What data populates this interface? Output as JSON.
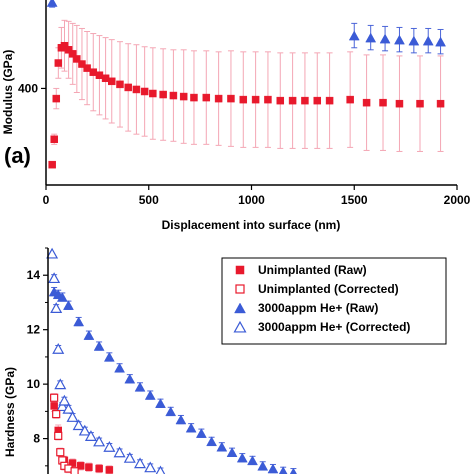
{
  "colors": {
    "unimplanted": "#e8192c",
    "unimplanted_err": "#f4a6b4",
    "implanted": "#3b5bd6",
    "implanted_err": "#4a64d8",
    "axis": "#000000"
  },
  "chart_data": [
    {
      "type": "scatter",
      "panel_label": "(a)",
      "ylabel": "Modulus (GPa)",
      "xlabel": "Displacement into surface (nm)",
      "xlim": [
        0,
        2000
      ],
      "ylim": [
        305,
        487
      ],
      "xticks": [
        "0",
        "500",
        "1000",
        "1500",
        "2000"
      ],
      "xtick_values": [
        0,
        500,
        1000,
        1500,
        2000
      ],
      "yticks": [
        "400"
      ],
      "ytick_values": [
        400
      ],
      "series": [
        {
          "key": "unimplanted_raw",
          "marker": "square",
          "x": [
            30,
            40,
            50,
            60,
            75,
            90,
            110,
            130,
            150,
            175,
            200,
            230,
            260,
            290,
            320,
            360,
            400,
            440,
            480,
            520,
            570,
            620,
            670,
            720,
            780,
            840,
            900,
            960,
            1020,
            1080,
            1140,
            1200,
            1260,
            1320,
            1380,
            1480,
            1560,
            1640,
            1720,
            1820,
            1920
          ],
          "y": [
            325,
            350,
            390,
            425,
            440,
            442,
            438,
            434,
            429,
            424,
            420,
            416,
            413,
            410,
            407,
            404,
            401,
            399,
            397,
            395,
            394,
            393,
            392,
            391,
            391,
            390,
            390,
            389,
            389,
            389,
            388,
            388,
            388,
            388,
            388,
            389,
            386,
            386,
            385,
            385,
            385
          ],
          "err": [
            0,
            5,
            10,
            15,
            20,
            25,
            28,
            30,
            33,
            35,
            36,
            38,
            39,
            40,
            41,
            42,
            43,
            44,
            44,
            45,
            45,
            45,
            46,
            46,
            46,
            46,
            47,
            47,
            47,
            47,
            47,
            47,
            47,
            47,
            47,
            47,
            47,
            47,
            47,
            47,
            47
          ]
        },
        {
          "key": "implanted_raw",
          "marker": "triangle",
          "x": [
            30,
            1500,
            1580,
            1650,
            1720,
            1790,
            1860,
            1920
          ],
          "y": [
            485,
            452,
            450,
            449,
            448,
            447,
            447,
            446
          ],
          "err": [
            5,
            12,
            12,
            12,
            12,
            12,
            12,
            12
          ]
        }
      ]
    },
    {
      "type": "scatter",
      "ylabel": "Hardness (GPa)",
      "xlim": [
        0,
        2000
      ],
      "ylim": [
        6.7,
        15.0
      ],
      "yticks": [
        "8",
        "10",
        "12",
        "14"
      ],
      "ytick_values": [
        8,
        10,
        12,
        14
      ],
      "legend": {
        "position": "top-right",
        "entries": [
          {
            "key": "unimplanted_raw",
            "label": "Unimplanted (Raw)",
            "marker": "square-filled"
          },
          {
            "key": "unimplanted_corrected",
            "label": "Unimplanted (Corrected)",
            "marker": "square-open"
          },
          {
            "key": "implanted_raw",
            "label": "3000appm He+ (Raw)",
            "marker": "triangle-filled"
          },
          {
            "key": "implanted_corrected",
            "label": "3000appm He+ (Corrected)",
            "marker": "triangle-open"
          }
        ]
      },
      "series": [
        {
          "key": "implanted_raw",
          "marker": "triangle-filled",
          "x": [
            20,
            30,
            50,
            70,
            100,
            150,
            200,
            250,
            300,
            350,
            400,
            450,
            500,
            550,
            600,
            650,
            700,
            750,
            800,
            850,
            900,
            950,
            1000,
            1050,
            1100,
            1150,
            1200
          ],
          "y": [
            14.8,
            13.4,
            13.3,
            13.2,
            12.9,
            12.3,
            11.8,
            11.4,
            11.0,
            10.6,
            10.2,
            9.9,
            9.6,
            9.3,
            9.0,
            8.7,
            8.4,
            8.2,
            7.9,
            7.7,
            7.5,
            7.3,
            7.2,
            7.0,
            6.9,
            6.8,
            6.75
          ],
          "err": [
            0,
            0.15,
            0.15,
            0.15,
            0.15,
            0.15,
            0.15,
            0.15,
            0.15,
            0.15,
            0.15,
            0.15,
            0.15,
            0.15,
            0.15,
            0.15,
            0.15,
            0.15,
            0.15,
            0.15,
            0.15,
            0.15,
            0.15,
            0.15,
            0.15,
            0.15,
            0.15
          ]
        },
        {
          "key": "implanted_corrected",
          "marker": "triangle-open",
          "x": [
            20,
            30,
            40,
            50,
            60,
            70,
            80,
            100,
            120,
            150,
            180,
            210,
            250,
            300,
            350,
            400,
            450,
            500,
            550
          ],
          "y": [
            14.8,
            13.9,
            12.8,
            11.3,
            10.0,
            9.2,
            9.4,
            9.1,
            8.8,
            8.5,
            8.3,
            8.1,
            7.9,
            7.7,
            7.5,
            7.3,
            7.1,
            6.95,
            6.8
          ],
          "err": [
            0,
            0.12,
            0.12,
            0.12,
            0.12,
            0.12,
            0.12,
            0.12,
            0.12,
            0.12,
            0.12,
            0.12,
            0.12,
            0.12,
            0.12,
            0.12,
            0.12,
            0.12,
            0.12
          ]
        },
        {
          "key": "unimplanted_raw",
          "marker": "square-filled",
          "x": [
            30,
            50,
            80,
            120,
            160,
            200,
            250,
            300
          ],
          "y": [
            9.2,
            8.3,
            7.2,
            7.1,
            7.0,
            6.95,
            6.9,
            6.85
          ],
          "err": [
            0.2,
            0.2,
            0.15,
            0.15,
            0.15,
            0.15,
            0.15,
            0.15
          ]
        },
        {
          "key": "unimplanted_corrected",
          "marker": "square-open",
          "x": [
            30,
            40,
            50,
            60,
            70,
            80,
            100,
            130
          ],
          "y": [
            9.5,
            8.9,
            8.1,
            7.5,
            7.2,
            7.0,
            6.9,
            6.8
          ],
          "err": [
            0.15,
            0.15,
            0.15,
            0.15,
            0.15,
            0.15,
            0.15,
            0.15
          ]
        }
      ]
    }
  ]
}
